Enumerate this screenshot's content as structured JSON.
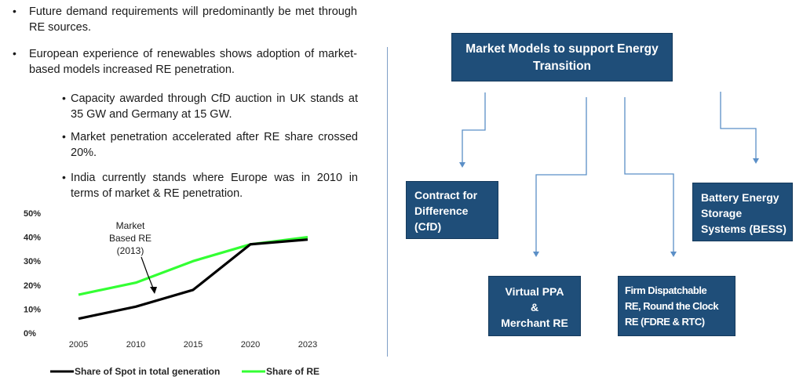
{
  "bullets": [
    "Future demand requirements will predominantly be met through RE sources.",
    "European experience of renewables shows adoption of market-based models increased RE penetration."
  ],
  "sub_bullets": [
    "Capacity awarded through CfD auction in UK stands at 35 GW and Germany at 15 GW.",
    "Market penetration accelerated after RE share crossed 20%.",
    "India currently stands where Europe was in 2010 in terms of market & RE penetration."
  ],
  "diagram": {
    "title_line1": "Market Models to support Energy",
    "title_line2": "Transition",
    "cfd": [
      "Contract for",
      "Difference",
      "(CfD)"
    ],
    "ppa": [
      "Virtual PPA",
      "&",
      "Merchant RE"
    ],
    "fdre": [
      "Firm Dispatchable",
      "RE, Round the Clock",
      "RE (FDRE & RTC)"
    ],
    "bess": [
      "Battery Energy",
      "Storage",
      "Systems (BESS)"
    ],
    "colors": {
      "box": "#1f4e79",
      "arrow": "#5b8fc7"
    }
  },
  "chart_data": {
    "type": "line",
    "x": [
      "2005",
      "2010",
      "2015",
      "2020",
      "2023"
    ],
    "y_ticks": [
      "0%",
      "10%",
      "20%",
      "30%",
      "40%",
      "50%"
    ],
    "ylim": [
      0,
      50
    ],
    "series": [
      {
        "name": "Share of Spot in total generation",
        "values": [
          6,
          11,
          18,
          37,
          39
        ],
        "color": "#000000"
      },
      {
        "name": "Share of RE",
        "values": [
          16,
          21,
          30,
          37,
          40
        ],
        "color": "#33ff33"
      }
    ],
    "annotation": {
      "lines": [
        "Market",
        "Based RE",
        "(2013)"
      ]
    },
    "legend": "bottom"
  }
}
